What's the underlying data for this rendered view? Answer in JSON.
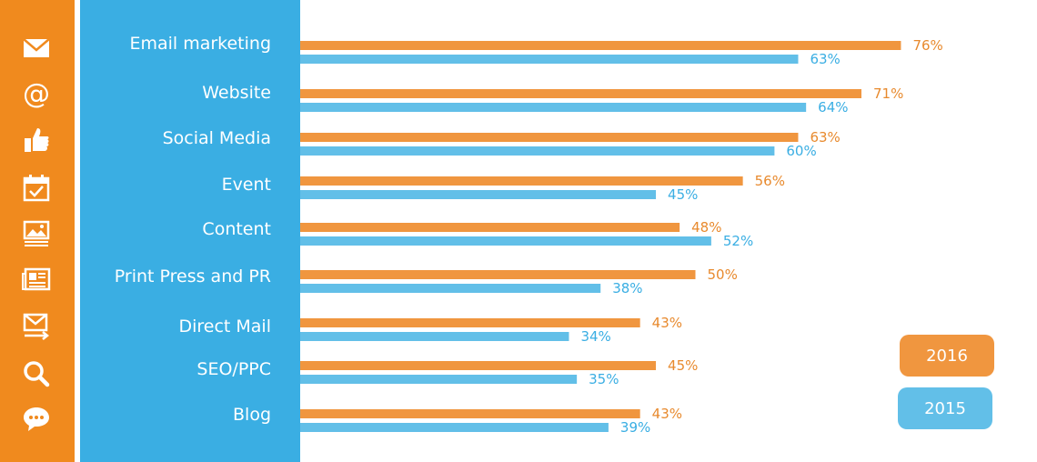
{
  "icons": [
    "envelope-icon",
    "at-sign-icon",
    "thumbs-up-icon",
    "calendar-check-icon",
    "image-gallery-icon",
    "newspaper-icon",
    "mail-send-icon",
    "search-icon",
    "chat-bubble-icon"
  ],
  "colors": {
    "series_2016": "#F0963F",
    "series_2015": "#62BFE8",
    "icon_bar": "#F08A1E",
    "label_panel": "#3AAEE3",
    "label_2016": "#E88A2E",
    "label_2015": "#3AAEE3"
  },
  "legend": {
    "y2016": "2016",
    "y2015": "2015"
  },
  "chart_data": {
    "type": "bar",
    "orientation": "horizontal",
    "categories": [
      "Email marketing",
      "Website",
      "Social Media",
      "Event",
      "Content",
      "Print Press and PR",
      "Direct Mail",
      "SEO/PPC",
      "Blog"
    ],
    "series": [
      {
        "name": "2016",
        "values": [
          76,
          71,
          63,
          56,
          48,
          50,
          43,
          45,
          43
        ],
        "labels": [
          "76%",
          "71%",
          "63%",
          "56%",
          "48%",
          "50%",
          "43%",
          "45%",
          "43%"
        ]
      },
      {
        "name": "2015",
        "values": [
          63,
          64,
          60,
          45,
          52,
          38,
          34,
          35,
          39
        ],
        "labels": [
          "63%",
          "64%",
          "60%",
          "45%",
          "52%",
          "38%",
          "34%",
          "35%",
          "39%"
        ]
      }
    ],
    "xlim": [
      0,
      100
    ],
    "grid": false,
    "legend_position": "bottom-right"
  }
}
